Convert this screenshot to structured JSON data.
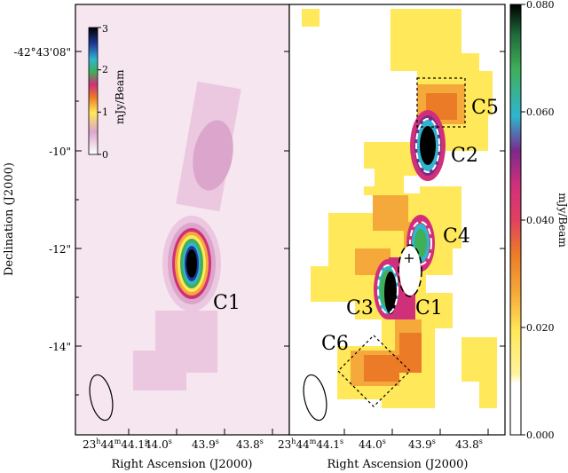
{
  "chart_data": [
    {
      "type": "heatmap",
      "panel": "left",
      "xlabel": "Right Ascension (J2000)",
      "ylabel": "Declination (J2000)",
      "x_tick_labels": [
        "23h44m44.1s",
        "44.0s",
        "43.9s",
        "43.8s"
      ],
      "y_tick_labels": [
        "-42°43'08\"",
        "-10\"",
        "-12\"",
        "-14\""
      ],
      "y_tick_values_arcsec": [
        -8,
        -10,
        -12,
        -14
      ],
      "colorbar": {
        "label": "mJy/Beam",
        "placement": "inset top-left",
        "range": [
          0,
          3
        ],
        "tick_labels": [
          "0",
          "1",
          "2",
          "3"
        ]
      },
      "sources": [
        {
          "name": "C1",
          "label": "C1",
          "peak_mJy_per_beam": 3.0
        }
      ],
      "beam": "ellipse, bottom-left"
    },
    {
      "type": "heatmap",
      "panel": "right",
      "xlabel": "Right Ascension (J2000)",
      "x_tick_labels": [
        "23h44m44.1s",
        "44.0s",
        "43.9s",
        "43.8s"
      ],
      "colorbar": {
        "label": "mJy/Beam",
        "placement": "right",
        "range": [
          0.0,
          0.08
        ],
        "tick_labels": [
          "0.000",
          "0.020",
          "0.040",
          "0.060",
          "0.080"
        ]
      },
      "sources": [
        {
          "name": "C1",
          "label": "C1"
        },
        {
          "name": "C2",
          "label": "C2"
        },
        {
          "name": "C3",
          "label": "C3"
        },
        {
          "name": "C4",
          "label": "C4"
        },
        {
          "name": "C5",
          "label": "C5",
          "marker": "dashed square"
        },
        {
          "name": "C6",
          "label": "C6",
          "marker": "dashed diamond"
        }
      ],
      "center_marker": "+",
      "beam": "ellipse, bottom-left"
    }
  ],
  "ra_prefix": {
    "h": "23",
    "h_sup": "h",
    "m": "44",
    "m_sup": "m",
    "s": "44.1",
    "s_sup": "s"
  },
  "ra_ticks": [
    {
      "v": "44.0",
      "u": "s"
    },
    {
      "v": "43.9",
      "u": "s"
    },
    {
      "v": "43.8",
      "u": "s"
    }
  ],
  "colors": {
    "pale_pink": "#f6e6f0",
    "light_pink": "#ecc8e0",
    "mid_pink": "#dca6cc",
    "yellow": "#ffe85a",
    "orange": "#f4a93a",
    "deep_orange": "#ec7b28",
    "magenta": "#d0307a",
    "purple": "#7a2a8a",
    "cyan": "#2fb5cf",
    "green": "#3faf5a",
    "black": "#000000"
  }
}
